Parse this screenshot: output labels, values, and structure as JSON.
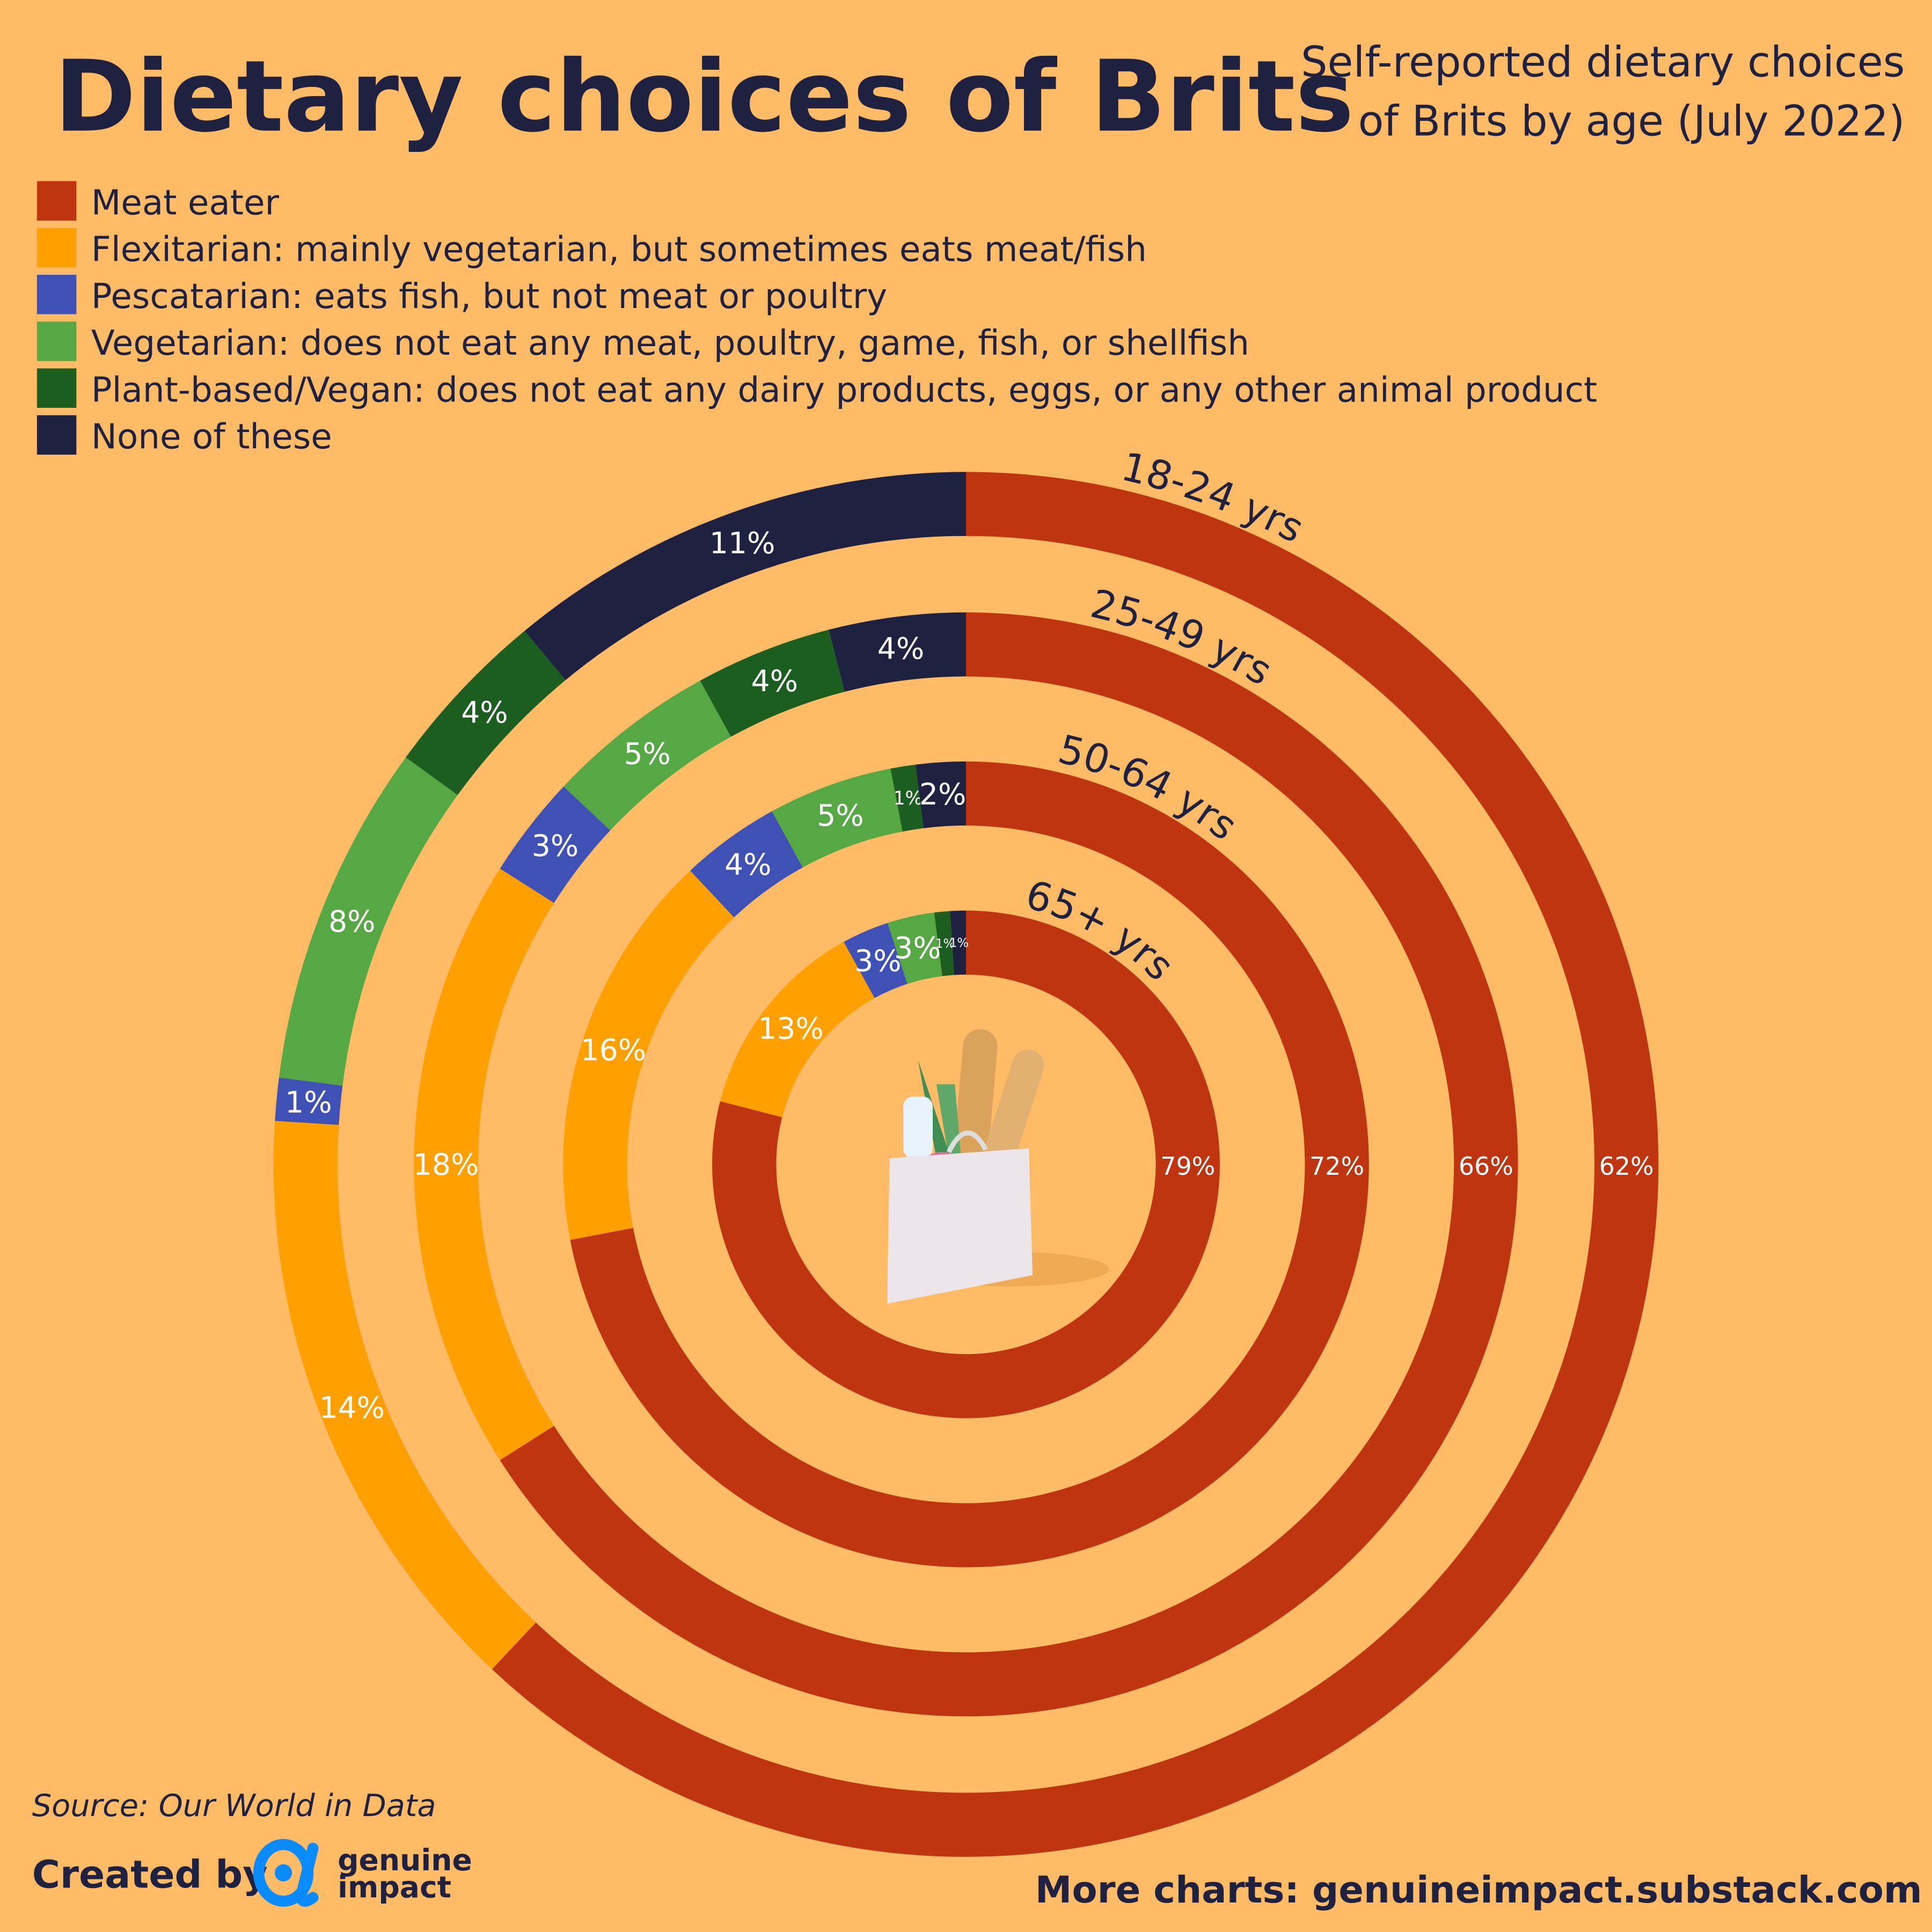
{
  "title": "Dietary choices of Brits",
  "subtitle_lines": [
    "Self-reported dietary choices",
    "of Brits by age (July 2022)"
  ],
  "legend": [
    {
      "label": "Meat eater",
      "color": "#BE3510"
    },
    {
      "label": "Flexitarian: mainly vegetarian, but sometimes eats meat/fish",
      "color": "#FFA000"
    },
    {
      "label": "Pescatarian: eats fish, but not meat or poultry",
      "color": "#3F51B5"
    },
    {
      "label": "Vegetarian: does not eat any meat, poultry, game, fish, or shellfish",
      "color": "#55A843"
    },
    {
      "label": "Plant-based/Vegan: does not eat any dairy products, eggs, or any other animal product",
      "color": "#1B5E20"
    },
    {
      "label": "None of these",
      "color": "#1E2240"
    }
  ],
  "chart_data": {
    "type": "pie",
    "subtype": "concentric-donut",
    "categories": [
      "Meat eater",
      "Flexitarian",
      "Pescatarian",
      "Vegetarian",
      "Plant-based/Vegan",
      "None of these"
    ],
    "series": [
      {
        "name": "18-24 yrs",
        "values": [
          62,
          14,
          1,
          8,
          4,
          11
        ]
      },
      {
        "name": "25-49 yrs",
        "values": [
          66,
          18,
          3,
          5,
          4,
          4
        ]
      },
      {
        "name": "50-64 yrs",
        "values": [
          72,
          16,
          4,
          5,
          1,
          2
        ]
      },
      {
        "name": "65+ yrs",
        "values": [
          79,
          13,
          3,
          3,
          1,
          1
        ]
      }
    ],
    "unit": "%",
    "start": "top, clockwise",
    "colors": [
      "#BE3510",
      "#FFA000",
      "#3F51B5",
      "#55A843",
      "#1B5E20",
      "#1E2240"
    ]
  },
  "center_image": "grocery-bag-icon",
  "footer": {
    "source": "Source: Our World in Data",
    "created_by": "Created by",
    "brand_line1": "genuine",
    "brand_line2": "impact",
    "more": "More charts: genuineimpact.substack.com"
  },
  "colors": {
    "background": "#FFBB66",
    "text": "#1E2240",
    "brand": "#0A8BFF"
  }
}
